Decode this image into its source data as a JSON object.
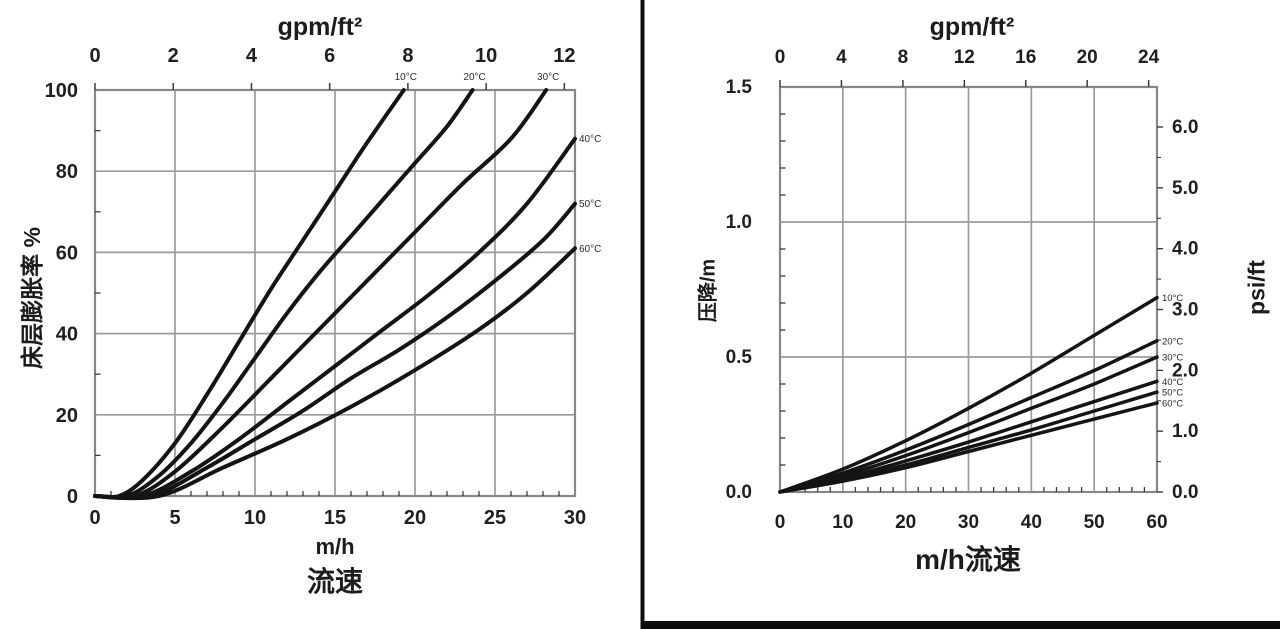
{
  "panel": {
    "background": "#ffffff",
    "border_color": "#0c0c0c"
  },
  "chart_data": [
    {
      "id": "bed_expansion",
      "type": "line",
      "top_axis": {
        "title": "gpm/ft²",
        "tick_values": [
          0,
          2,
          4,
          6,
          8,
          10,
          12
        ],
        "tick_labels": [
          "0",
          "2",
          "4",
          "6",
          "8",
          "10",
          "12"
        ],
        "range": [
          0,
          12
        ]
      },
      "x_axis": {
        "label_lines": [
          "m/h",
          "流速"
        ],
        "tick_values": [
          0,
          5,
          10,
          15,
          20,
          25,
          30
        ],
        "tick_labels": [
          "0",
          "5",
          "10",
          "15",
          "20",
          "25",
          "30"
        ],
        "range": [
          0,
          30
        ],
        "minor_step": 1
      },
      "y_axis": {
        "label": "床层膨胀率 %",
        "tick_values": [
          0,
          20,
          40,
          60,
          80,
          100
        ],
        "tick_labels": [
          "0",
          "20",
          "40",
          "60",
          "80",
          "100"
        ],
        "range": [
          0,
          100
        ],
        "minor_step": 10
      },
      "grid": true,
      "series": [
        {
          "name": "10°C",
          "label_placement": "top",
          "points": [
            [
              0,
              0
            ],
            [
              1.5,
              0
            ],
            [
              3,
              4
            ],
            [
              5,
              13
            ],
            [
              7,
              25
            ],
            [
              9,
              38
            ],
            [
              11,
              51
            ],
            [
              13,
              63
            ],
            [
              15,
              75
            ],
            [
              17,
              87
            ],
            [
              19.3,
              100
            ]
          ]
        },
        {
          "name": "20°C",
          "label_placement": "top",
          "points": [
            [
              0,
              0
            ],
            [
              2,
              0
            ],
            [
              4,
              5
            ],
            [
              6,
              13
            ],
            [
              8,
              23
            ],
            [
              10,
              34
            ],
            [
              12,
              45
            ],
            [
              14,
              55
            ],
            [
              16,
              64
            ],
            [
              18,
              73
            ],
            [
              20,
              82
            ],
            [
              22,
              91
            ],
            [
              23.6,
              100
            ]
          ]
        },
        {
          "name": "30°C",
          "label_placement": "top",
          "points": [
            [
              0,
              0
            ],
            [
              2.5,
              0
            ],
            [
              5,
              6
            ],
            [
              8,
              17
            ],
            [
              11,
              29
            ],
            [
              14,
              41
            ],
            [
              17,
              53
            ],
            [
              20,
              65
            ],
            [
              23,
              77
            ],
            [
              26,
              88
            ],
            [
              28.2,
              100
            ]
          ]
        },
        {
          "name": "40°C",
          "label_placement": "right",
          "points": [
            [
              0,
              0
            ],
            [
              3,
              0
            ],
            [
              6,
              6
            ],
            [
              9,
              14
            ],
            [
              12,
              23
            ],
            [
              15,
              32
            ],
            [
              18,
              41
            ],
            [
              21,
              50
            ],
            [
              24,
              60
            ],
            [
              27,
              72
            ],
            [
              30,
              88
            ]
          ]
        },
        {
          "name": "50°C",
          "label_placement": "right",
          "points": [
            [
              0,
              0
            ],
            [
              3.5,
              0
            ],
            [
              7,
              7
            ],
            [
              10,
              14
            ],
            [
              13,
              21
            ],
            [
              16,
              29
            ],
            [
              19,
              36
            ],
            [
              22,
              44
            ],
            [
              25,
              53
            ],
            [
              28,
              63
            ],
            [
              30,
              72
            ]
          ]
        },
        {
          "name": "60°C",
          "label_placement": "right",
          "points": [
            [
              0,
              0
            ],
            [
              4,
              0
            ],
            [
              8,
              7
            ],
            [
              12,
              14
            ],
            [
              16,
              22
            ],
            [
              20,
              31
            ],
            [
              24,
              41
            ],
            [
              27,
              50
            ],
            [
              30,
              61
            ]
          ]
        }
      ]
    },
    {
      "id": "pressure_drop",
      "type": "line",
      "top_axis": {
        "title": "gpm/ft²",
        "tick_values": [
          0,
          4,
          8,
          12,
          16,
          20,
          24
        ],
        "tick_labels": [
          "0",
          "4",
          "8",
          "12",
          "16",
          "20",
          "24"
        ],
        "range": [
          0,
          24
        ]
      },
      "x_axis": {
        "label_lines": [
          "m/h流速"
        ],
        "tick_values": [
          0,
          10,
          20,
          30,
          40,
          50,
          60
        ],
        "tick_labels": [
          "0",
          "10",
          "20",
          "30",
          "40",
          "50",
          "60"
        ],
        "range": [
          0,
          60
        ],
        "minor_step": 2
      },
      "y_axis": {
        "label": "压降/m",
        "tick_values": [
          0,
          0.5,
          1.0,
          1.5
        ],
        "tick_labels": [
          "0.0",
          "0.5",
          "1.0",
          "1.5"
        ],
        "range": [
          0,
          1.5
        ],
        "minor_step": 0.1
      },
      "y2_axis": {
        "label": "psi/ft",
        "tick_values": [
          0,
          1,
          2,
          3,
          4,
          5,
          6
        ],
        "tick_labels": [
          "0.0",
          "1.0",
          "2.0",
          "3.0",
          "4.0",
          "5.0",
          "6.0"
        ],
        "range": [
          0,
          6
        ],
        "minor_step": 0.5
      },
      "grid": true,
      "series": [
        {
          "name": "10°C",
          "label_placement": "right",
          "points": [
            [
              0,
              0
            ],
            [
              10,
              0.085
            ],
            [
              20,
              0.19
            ],
            [
              30,
              0.31
            ],
            [
              40,
              0.44
            ],
            [
              50,
              0.58
            ],
            [
              60,
              0.72
            ]
          ]
        },
        {
          "name": "20°C",
          "label_placement": "right",
          "points": [
            [
              0,
              0
            ],
            [
              10,
              0.07
            ],
            [
              20,
              0.155
            ],
            [
              30,
              0.25
            ],
            [
              40,
              0.35
            ],
            [
              50,
              0.45
            ],
            [
              60,
              0.56
            ]
          ]
        },
        {
          "name": "30°C",
          "label_placement": "right",
          "points": [
            [
              0,
              0
            ],
            [
              10,
              0.06
            ],
            [
              20,
              0.135
            ],
            [
              30,
              0.22
            ],
            [
              40,
              0.31
            ],
            [
              50,
              0.4
            ],
            [
              60,
              0.5
            ]
          ]
        },
        {
          "name": "40°C",
          "label_placement": "right",
          "points": [
            [
              0,
              0
            ],
            [
              10,
              0.05
            ],
            [
              20,
              0.115
            ],
            [
              30,
              0.185
            ],
            [
              40,
              0.26
            ],
            [
              50,
              0.335
            ],
            [
              60,
              0.41
            ]
          ]
        },
        {
          "name": "50°C",
          "label_placement": "right",
          "points": [
            [
              0,
              0
            ],
            [
              10,
              0.045
            ],
            [
              20,
              0.1
            ],
            [
              30,
              0.165
            ],
            [
              40,
              0.23
            ],
            [
              50,
              0.3
            ],
            [
              60,
              0.37
            ]
          ]
        },
        {
          "name": "60°C",
          "label_placement": "right",
          "points": [
            [
              0,
              0
            ],
            [
              10,
              0.04
            ],
            [
              20,
              0.09
            ],
            [
              30,
              0.15
            ],
            [
              40,
              0.21
            ],
            [
              50,
              0.27
            ],
            [
              60,
              0.33
            ]
          ]
        }
      ]
    }
  ]
}
